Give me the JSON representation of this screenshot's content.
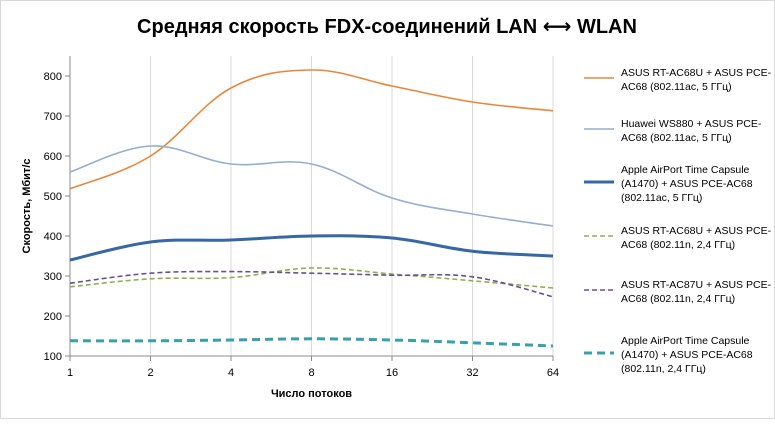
{
  "chart_data": {
    "type": "line",
    "title": "Средняя скорость FDX-соединений LAN ⟷ WLAN",
    "xlabel": "Число потоков",
    "ylabel": "Скорость, Мбит/с",
    "x": [
      1,
      2,
      4,
      8,
      16,
      32,
      64
    ],
    "x_tick_labels": [
      "1",
      "2",
      "4",
      "8",
      "16",
      "32",
      "64"
    ],
    "x_scale": "log2",
    "ylim": [
      100,
      850
    ],
    "y_ticks": [
      100,
      200,
      300,
      400,
      500,
      600,
      700,
      800
    ],
    "grid": "vertical",
    "legend_position": "right",
    "series": [
      {
        "name": "ASUS RT-AC68U + ASUS PCE-AC68 (802.11ac, 5 ГГц)",
        "legend_lines": [
          "ASUS RT-AC68U + ASUS PCE-",
          "AC68 (802.11ac, 5 ГГц)"
        ],
        "color": "#E8873A",
        "style": "solid",
        "width": "thin",
        "values": [
          518,
          600,
          770,
          815,
          775,
          735,
          713
        ]
      },
      {
        "name": "Huawei WS880 + ASUS PCE-AC68 (802.11ac, 5 ГГц)",
        "legend_lines": [
          "Huawei WS880 + ASUS PCE-",
          "AC68 (802.11ac, 5 ГГц)"
        ],
        "color": "#94AECF",
        "style": "solid",
        "width": "thin",
        "values": [
          560,
          625,
          580,
          580,
          495,
          455,
          425
        ]
      },
      {
        "name": "Apple AirPort Time Capsule (A1470) + ASUS PCE-AC68 (802.11ac, 5 ГГц)",
        "legend_lines": [
          "Apple AirPort Time Capsule",
          "(A1470) + ASUS PCE-AC68",
          "(802.11ac, 5 ГГц)"
        ],
        "color": "#3767A5",
        "style": "solid",
        "width": "thick",
        "values": [
          340,
          385,
          390,
          400,
          395,
          362,
          350
        ]
      },
      {
        "name": "ASUS RT-AC68U + ASUS PCE-AC68 (802.11n, 2,4 ГГц)",
        "legend_lines": [
          "ASUS RT-AC68U + ASUS PCE-",
          "AC68 (802.11n, 2,4 ГГц)"
        ],
        "color": "#8EB14D",
        "style": "dashed",
        "width": "thin",
        "values": [
          273,
          293,
          296,
          320,
          305,
          288,
          270
        ]
      },
      {
        "name": "ASUS RT-AC87U + ASUS PCE-AC68 (802.11n, 2,4 ГГц)",
        "legend_lines": [
          "ASUS RT-AC87U + ASUS PCE-",
          "AC68 (802.11n, 2,4 ГГц)"
        ],
        "color": "#6B4E8C",
        "style": "dashed",
        "width": "thin",
        "values": [
          282,
          307,
          311,
          307,
          302,
          298,
          248
        ]
      },
      {
        "name": "Apple AirPort Time Capsule (A1470) + ASUS PCE-AC68 (802.11n, 2,4 ГГц)",
        "legend_lines": [
          "Apple AirPort Time Capsule",
          "(A1470) + ASUS PCE-AC68",
          "(802.11n, 2,4 ГГц)"
        ],
        "color": "#36A0B0",
        "style": "dashed",
        "width": "thick",
        "values": [
          138,
          138,
          140,
          143,
          140,
          133,
          125
        ]
      }
    ]
  }
}
